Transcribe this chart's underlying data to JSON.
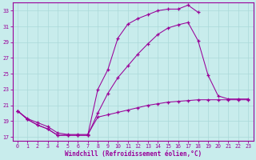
{
  "xlabel": "Windchill (Refroidissement éolien,°C)",
  "bg_color": "#c8ecec",
  "line_color": "#990099",
  "xlim_min": -0.5,
  "xlim_max": 23.5,
  "ylim_min": 16.5,
  "ylim_max": 34.0,
  "xticks": [
    0,
    1,
    2,
    3,
    4,
    5,
    6,
    7,
    8,
    9,
    10,
    11,
    12,
    13,
    14,
    15,
    16,
    17,
    18,
    19,
    20,
    21,
    22,
    23
  ],
  "yticks": [
    17,
    19,
    21,
    23,
    25,
    27,
    29,
    31,
    33
  ],
  "line1_x": [
    0,
    1,
    2,
    3,
    4,
    5,
    6,
    7,
    8,
    9,
    10,
    11,
    12,
    13,
    14,
    15,
    16,
    17,
    18
  ],
  "line1_y": [
    20.3,
    19.2,
    18.5,
    18.0,
    17.2,
    17.2,
    17.2,
    17.2,
    23.0,
    25.5,
    29.5,
    31.3,
    32.0,
    32.5,
    33.0,
    33.2,
    33.2,
    33.7,
    32.8
  ],
  "line2_x": [
    0,
    1,
    2,
    3,
    4,
    5,
    6,
    7,
    8,
    9,
    10,
    11,
    12,
    13,
    14,
    15,
    16,
    17,
    18,
    19,
    20,
    21,
    22,
    23
  ],
  "line2_y": [
    20.3,
    19.2,
    18.5,
    18.0,
    17.2,
    17.2,
    17.2,
    17.2,
    20.0,
    22.5,
    24.5,
    26.0,
    27.5,
    28.8,
    30.0,
    30.8,
    31.2,
    31.5,
    29.2,
    24.8,
    22.2,
    21.8,
    21.8,
    21.8
  ],
  "line3_x": [
    0,
    1,
    2,
    3,
    4,
    5,
    6,
    7,
    8,
    9,
    10,
    11,
    12,
    13,
    14,
    15,
    16,
    17,
    18,
    19,
    20,
    21,
    22,
    23
  ],
  "line3_y": [
    20.3,
    19.3,
    18.8,
    18.3,
    17.5,
    17.3,
    17.3,
    17.3,
    19.5,
    19.8,
    20.1,
    20.4,
    20.7,
    21.0,
    21.2,
    21.4,
    21.5,
    21.6,
    21.7,
    21.7,
    21.7,
    21.7,
    21.7,
    21.7
  ],
  "xlabel_fontsize": 5.5,
  "tick_fontsize": 4.8
}
